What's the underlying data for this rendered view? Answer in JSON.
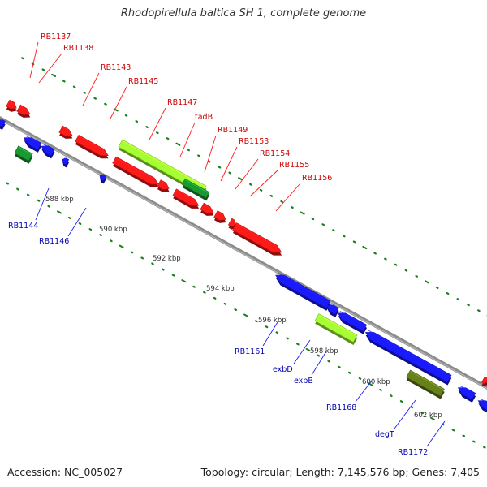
{
  "title": "Rhodopirellula baltica SH 1, complete genome",
  "footer": {
    "accession": "Accession: NC_005027",
    "summary": "Topology: circular; Length: 7,145,576 bp; Genes: 7,405"
  },
  "colors": {
    "forward_gene": "#ff1a1a",
    "reverse_gene": "#1a1aff",
    "trna_or_highlight": "#a6ff33",
    "dark_green": "#1a9933",
    "olive": "#66801a",
    "backbone": "#8c8c8c",
    "tick": "#1a801a",
    "forward_label": "#cc0000",
    "reverse_label": "#0000b3"
  },
  "axis": {
    "ticks": [
      {
        "label": "588 kbp"
      },
      {
        "label": "590 kbp"
      },
      {
        "label": "592 kbp"
      },
      {
        "label": "594 kbp"
      },
      {
        "label": "596 kbp"
      },
      {
        "label": "598 kbp"
      },
      {
        "label": "600 kbp"
      },
      {
        "label": "602 kbp"
      }
    ]
  },
  "labels": {
    "forward": [
      "RB1137",
      "RB1138",
      "RB1143",
      "RB1145",
      "RB1147",
      "tadB",
      "RB1149",
      "RB1153",
      "RB1154",
      "RB1155",
      "RB1156"
    ],
    "reverse": [
      "RB1144",
      "RB1146",
      "RB1161",
      "exbD",
      "exbB",
      "RB1168",
      "degT",
      "RB1172"
    ]
  }
}
